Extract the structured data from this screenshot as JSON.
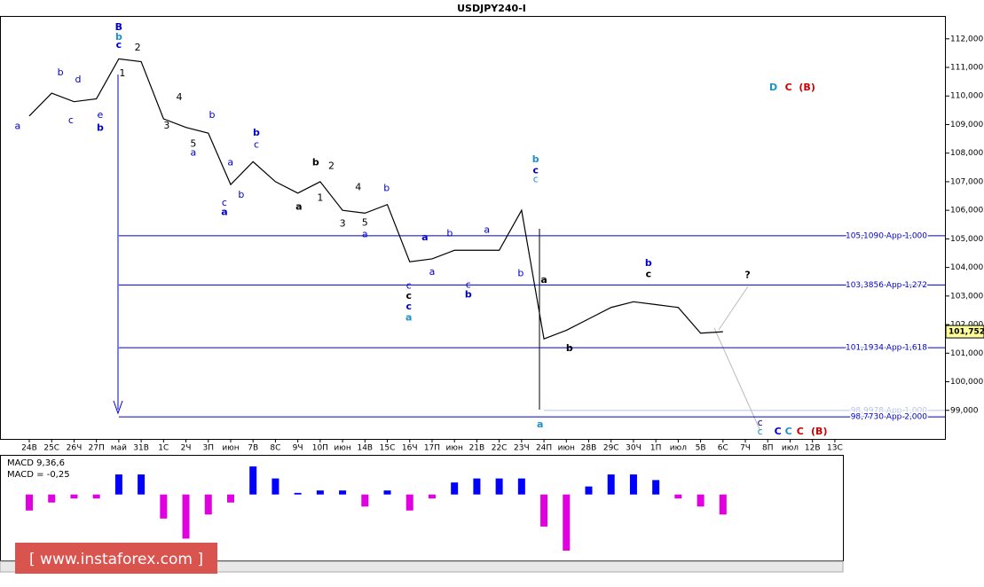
{
  "chart_data": [
    {
      "type": "line",
      "title": "USDJPY240-I",
      "categories": [
        "24В",
        "25С",
        "26Ч",
        "27П",
        "май",
        "31В",
        "1С",
        "2Ч",
        "3П",
        "июн",
        "7В",
        "8С",
        "9Ч",
        "10П",
        "июн",
        "14В",
        "15С",
        "16Ч",
        "17П",
        "июн",
        "21В",
        "22С",
        "23Ч",
        "24П",
        "июн",
        "28В",
        "29С",
        "30Ч",
        "1П",
        "июл",
        "5В",
        "6С",
        "7Ч",
        "8П",
        "июл",
        "12В",
        "13С"
      ],
      "values": [
        109.3,
        110.1,
        109.8,
        109.9,
        111.3,
        111.2,
        109.2,
        108.9,
        108.7,
        106.9,
        107.7,
        107.0,
        106.6,
        107.0,
        106.0,
        105.9,
        106.2,
        104.2,
        104.3,
        104.6,
        104.6,
        104.6,
        106.0,
        101.5,
        101.8,
        102.2,
        102.6,
        102.8,
        102.7,
        102.6,
        101.7,
        101.75,
        null,
        null,
        null,
        null,
        null
      ],
      "color": "#000000",
      "ylim": [
        98.0,
        112.8
      ],
      "yticks": [
        {
          "value": 99,
          "label": "99,000"
        },
        {
          "value": 100,
          "label": "100,000"
        },
        {
          "value": 101,
          "label": "101,000"
        },
        {
          "value": 102,
          "label": "102,000"
        },
        {
          "value": 103,
          "label": "103,000"
        },
        {
          "value": 104,
          "label": "104,000"
        },
        {
          "value": 105,
          "label": "105,000"
        },
        {
          "value": 106,
          "label": "106,000"
        },
        {
          "value": 107,
          "label": "107,000"
        },
        {
          "value": 108,
          "label": "108,000"
        },
        {
          "value": 109,
          "label": "109,000"
        },
        {
          "value": 110,
          "label": "110,000"
        },
        {
          "value": 111,
          "label": "111,000"
        },
        {
          "value": 112,
          "label": "112,000"
        }
      ],
      "current": {
        "value": 101.752,
        "label": "101,752"
      },
      "levels": [
        {
          "value": 105.109,
          "label": "105,1090 App 1,000",
          "from": 4,
          "color": "#0000cc"
        },
        {
          "value": 103.3856,
          "label": "103,3856 App 1,272",
          "from": 4,
          "color": "#0000cc"
        },
        {
          "value": 101.1934,
          "label": "101,1934 App 1,618",
          "from": 4,
          "color": "#0000cc"
        },
        {
          "value": 98.9978,
          "label": "98,9978 App 1,000",
          "from": 23,
          "color": "#b8c4e8"
        },
        {
          "value": 98.773,
          "label": "98,7730 App 2,000",
          "from": 4,
          "color": "#0000cc"
        }
      ],
      "annotations": [
        {
          "text": "B",
          "x": 4,
          "y": 112.4,
          "color": "#0000cc",
          "bold": true
        },
        {
          "text": "b",
          "x": 4,
          "y": 112.06,
          "color": "#1e90c8",
          "bold": true
        },
        {
          "text": "c",
          "x": 4,
          "y": 111.78,
          "color": "#0000cc",
          "bold": true
        },
        {
          "text": "2",
          "x": 4.84,
          "y": 111.69,
          "color": "#000000",
          "bold": false
        },
        {
          "text": "1",
          "x": 4.16,
          "y": 110.79,
          "color": "#000000",
          "bold": false
        },
        {
          "text": "a",
          "x": -0.52,
          "y": 108.93,
          "color": "#0000cc",
          "bold": false
        },
        {
          "text": "b",
          "x": 1.39,
          "y": 110.82,
          "color": "#0000cc",
          "bold": false
        },
        {
          "text": "d",
          "x": 2.18,
          "y": 110.57,
          "color": "#0000cc",
          "bold": false
        },
        {
          "text": "c",
          "x": 1.86,
          "y": 109.14,
          "color": "#0000cc",
          "bold": false
        },
        {
          "text": "e",
          "x": 3.17,
          "y": 109.33,
          "color": "#0000cc",
          "bold": false
        },
        {
          "text": "b",
          "x": 3.17,
          "y": 108.87,
          "color": "#0000cc",
          "bold": true
        },
        {
          "text": "4",
          "x": 6.7,
          "y": 109.95,
          "color": "#000000",
          "bold": false
        },
        {
          "text": "3",
          "x": 6.14,
          "y": 108.96,
          "color": "#000000",
          "bold": false
        },
        {
          "text": "5",
          "x": 7.33,
          "y": 108.31,
          "color": "#000000",
          "bold": false
        },
        {
          "text": "a",
          "x": 7.33,
          "y": 108.0,
          "color": "#0000cc",
          "bold": false
        },
        {
          "text": "b",
          "x": 8.17,
          "y": 109.33,
          "color": "#0000cc",
          "bold": false
        },
        {
          "text": "b",
          "x": 10.15,
          "y": 108.71,
          "color": "#0000cc",
          "bold": true
        },
        {
          "text": "c",
          "x": 10.15,
          "y": 108.28,
          "color": "#0000cc",
          "bold": false
        },
        {
          "text": "a",
          "x": 8.99,
          "y": 107.66,
          "color": "#0000cc",
          "bold": false
        },
        {
          "text": "c",
          "x": 8.72,
          "y": 106.26,
          "color": "#0000cc",
          "bold": false
        },
        {
          "text": "a",
          "x": 8.72,
          "y": 105.92,
          "color": "#0000cc",
          "bold": true
        },
        {
          "text": "b",
          "x": 9.47,
          "y": 106.54,
          "color": "#0000cc",
          "bold": false
        },
        {
          "text": "b",
          "x": 12.8,
          "y": 107.66,
          "color": "#000000",
          "bold": true
        },
        {
          "text": "2",
          "x": 13.5,
          "y": 107.54,
          "color": "#000000",
          "bold": false
        },
        {
          "text": "1",
          "x": 13,
          "y": 106.42,
          "color": "#000000",
          "bold": false
        },
        {
          "text": "a",
          "x": 12.05,
          "y": 106.11,
          "color": "#000000",
          "bold": true
        },
        {
          "text": "4",
          "x": 14.7,
          "y": 106.79,
          "color": "#000000",
          "bold": false
        },
        {
          "text": "3",
          "x": 14,
          "y": 105.52,
          "color": "#000000",
          "bold": false
        },
        {
          "text": "5",
          "x": 15,
          "y": 105.55,
          "color": "#000000",
          "bold": false
        },
        {
          "text": "a",
          "x": 15,
          "y": 105.15,
          "color": "#0000cc",
          "bold": false
        },
        {
          "text": "b",
          "x": 15.97,
          "y": 106.76,
          "color": "#0000cc",
          "bold": false
        },
        {
          "text": "a",
          "x": 17.68,
          "y": 105.05,
          "color": "#0000cc",
          "bold": true
        },
        {
          "text": "a",
          "x": 18,
          "y": 103.84,
          "color": "#0000cc",
          "bold": false
        },
        {
          "text": "b",
          "x": 18.79,
          "y": 105.18,
          "color": "#0000cc",
          "bold": false
        },
        {
          "text": "a",
          "x": 20.45,
          "y": 105.3,
          "color": "#0000cc",
          "bold": false
        },
        {
          "text": "c",
          "x": 16.96,
          "y": 103.35,
          "color": "#0000cc",
          "bold": false
        },
        {
          "text": "c",
          "x": 16.96,
          "y": 103.0,
          "color": "#000000",
          "bold": true
        },
        {
          "text": "c",
          "x": 16.96,
          "y": 102.63,
          "color": "#0000cc",
          "bold": true
        },
        {
          "text": "a",
          "x": 16.96,
          "y": 102.23,
          "color": "#1e90c8",
          "bold": true
        },
        {
          "text": "c",
          "x": 19.62,
          "y": 103.38,
          "color": "#0000cc",
          "bold": false
        },
        {
          "text": "b",
          "x": 19.62,
          "y": 103.04,
          "color": "#0000cc",
          "bold": true
        },
        {
          "text": "b",
          "x": 21.96,
          "y": 103.78,
          "color": "#0000cc",
          "bold": false
        },
        {
          "text": "b",
          "x": 22.63,
          "y": 107.78,
          "color": "#1e90c8",
          "bold": true
        },
        {
          "text": "c",
          "x": 22.63,
          "y": 107.38,
          "color": "#0000cc",
          "bold": true
        },
        {
          "text": "c",
          "x": 22.63,
          "y": 107.07,
          "color": "#1e90c8",
          "bold": false
        },
        {
          "text": "a",
          "x": 23,
          "y": 103.56,
          "color": "#000000",
          "bold": true
        },
        {
          "text": "b",
          "x": 24.14,
          "y": 101.17,
          "color": "#000000",
          "bold": true
        },
        {
          "text": "a",
          "x": 22.83,
          "y": 98.5,
          "color": "#1e90c8",
          "bold": true
        },
        {
          "text": "b",
          "x": 27.67,
          "y": 104.15,
          "color": "#0000cc",
          "bold": true
        },
        {
          "text": "c",
          "x": 27.67,
          "y": 103.75,
          "color": "#000000",
          "bold": true
        },
        {
          "text": "?",
          "x": 32.1,
          "y": 103.72,
          "color": "#000000",
          "bold": true
        },
        {
          "text": "D",
          "x": 33.25,
          "y": 110.29,
          "color": "#1e90c8",
          "bold": true
        },
        {
          "text": "C",
          "x": 33.93,
          "y": 110.29,
          "color": "#cc0000",
          "bold": true
        },
        {
          "text": "(B)",
          "x": 34.76,
          "y": 110.29,
          "color": "#cc0000",
          "bold": true
        },
        {
          "text": "c",
          "x": 32.66,
          "y": 98.56,
          "color": "#000080",
          "bold": false
        },
        {
          "text": "c",
          "x": 32.66,
          "y": 98.25,
          "color": "#1e90c8",
          "bold": false
        },
        {
          "text": "C",
          "x": 33.45,
          "y": 98.25,
          "color": "#0000cc",
          "bold": true
        },
        {
          "text": "C",
          "x": 33.93,
          "y": 98.25,
          "color": "#1e90c8",
          "bold": true
        },
        {
          "text": "C",
          "x": 34.45,
          "y": 98.25,
          "color": "#cc0000",
          "bold": true
        },
        {
          "text": "(B)",
          "x": 35.3,
          "y": 98.25,
          "color": "#cc0000",
          "bold": true
        }
      ]
    },
    {
      "type": "bar",
      "title": "MACD 9,36,6",
      "values": [
        -0.2,
        -0.1,
        -0.05,
        -0.05,
        0.25,
        0.25,
        -0.3,
        -0.55,
        -0.25,
        -0.1,
        0.35,
        0.2,
        0.02,
        0.05,
        0.05,
        -0.15,
        0.05,
        -0.2,
        -0.05,
        0.15,
        0.2,
        0.2,
        0.2,
        -0.4,
        -0.7,
        0.1,
        0.25,
        0.25,
        0.18,
        -0.05,
        -0.15,
        -0.25,
        null,
        null,
        null,
        null,
        null
      ],
      "current": {
        "value": -0.25,
        "label": "MACD = -0,25"
      },
      "color": "#0000ff",
      "negative_color": "#e000e0",
      "ylim": [
        -0.8,
        0.45
      ]
    }
  ],
  "watermark": "[ www.instaforex.com ]"
}
